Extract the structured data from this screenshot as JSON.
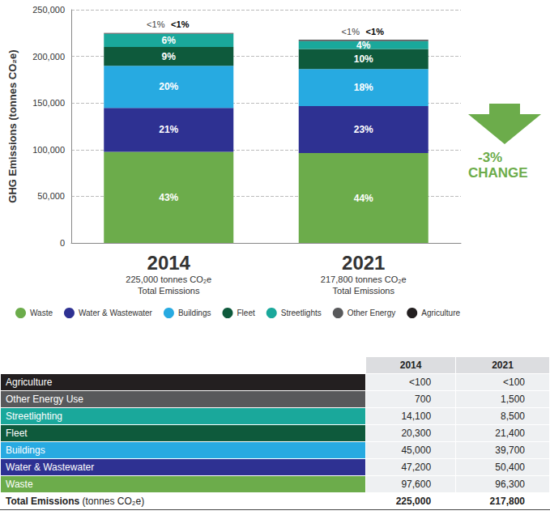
{
  "chart_data": {
    "type": "bar",
    "stacked": true,
    "grid": true,
    "legend": "bottom",
    "y_label": "GHG Emissions (tonnes CO₂e)",
    "categories": [
      "2014",
      "2021"
    ],
    "category_totals": [
      "225,000 tonnes CO₂e",
      "217,800 tonnes CO₂e"
    ],
    "category_caption": "Total Emissions",
    "ylim": [
      0,
      250000
    ],
    "yticks": [
      0,
      {
        "value": 50000,
        "label": "50,000"
      },
      {
        "value": 100000,
        "label": "100,000"
      },
      {
        "value": 150000,
        "label": "150,000"
      },
      {
        "value": 200000,
        "label": "200,000"
      },
      {
        "value": 250000,
        "label": "250,000"
      }
    ],
    "series": [
      {
        "name": "Waste",
        "color": "#6cac4b",
        "values": [
          97600,
          96300
        ],
        "share_labels": [
          "43%",
          "44%"
        ]
      },
      {
        "name": "Water & Wastewater",
        "color": "#2e3192",
        "values": [
          47200,
          50400
        ],
        "share_labels": [
          "21%",
          "23%"
        ]
      },
      {
        "name": "Buildings",
        "color": "#27aae1",
        "values": [
          45000,
          39700
        ],
        "share_labels": [
          "20%",
          "18%"
        ]
      },
      {
        "name": "Fleet",
        "color": "#0e5a3c",
        "values": [
          20300,
          21400
        ],
        "share_labels": [
          "9%",
          "10%"
        ]
      },
      {
        "name": "Streetlights",
        "color": "#1aa89b",
        "values": [
          14100,
          8500
        ],
        "share_labels": [
          "6%",
          "4%"
        ]
      },
      {
        "name": "Other Energy",
        "color": "#58595b",
        "values": [
          700,
          1500
        ],
        "share_labels": [
          "<1%",
          "<1%"
        ]
      },
      {
        "name": "Agriculture",
        "color": "#231f20",
        "values": [
          50,
          50
        ],
        "share_labels": [
          "<1%",
          "<1%"
        ]
      }
    ],
    "annotations": [
      "-3%",
      "CHANGE"
    ]
  },
  "table": {
    "header": [
      "2014",
      "2021"
    ],
    "rows": [
      {
        "label": "Agriculture",
        "color": "#231f20",
        "values": [
          "<100",
          "<100"
        ]
      },
      {
        "label": "Other Energy Use",
        "color": "#58595b",
        "values": [
          "700",
          "1,500"
        ]
      },
      {
        "label": "Streetlighting",
        "color": "#1aa89b",
        "values": [
          "14,100",
          "8,500"
        ]
      },
      {
        "label": "Fleet",
        "color": "#0e5a3c",
        "values": [
          "20,300",
          "21,400"
        ]
      },
      {
        "label": "Buildings",
        "color": "#27aae1",
        "values": [
          "45,000",
          "39,700"
        ]
      },
      {
        "label": "Water & Wastewater",
        "color": "#2e3192",
        "values": [
          "47,200",
          "50,400"
        ]
      },
      {
        "label": "Waste",
        "color": "#6cac4b",
        "values": [
          "97,600",
          "96,300"
        ]
      }
    ],
    "total": {
      "label": "Total Emissions",
      "unit": "(tonnes CO₂e)",
      "values": [
        "225,000",
        "217,800"
      ]
    }
  }
}
